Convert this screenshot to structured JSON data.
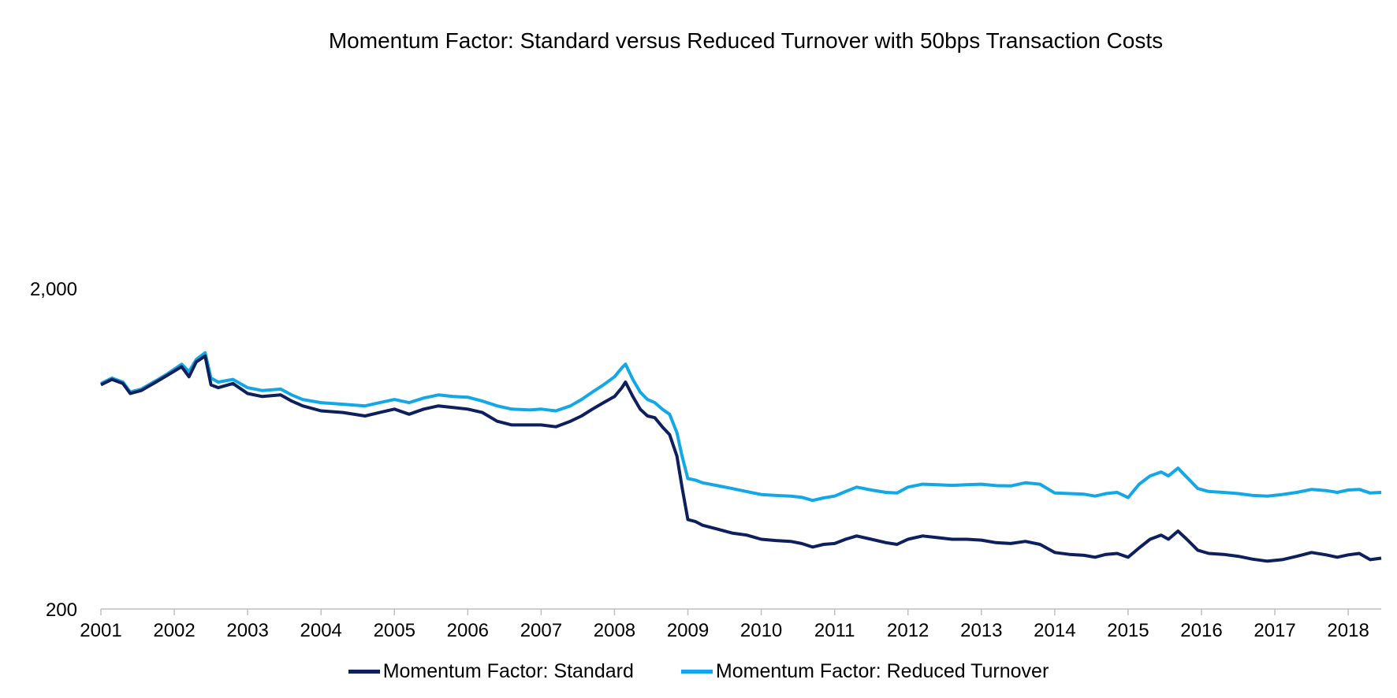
{
  "chart_data": {
    "type": "line",
    "title": "Momentum Factor: Standard versus Reduced Turnover with 50bps Transaction Costs",
    "xlabel": "",
    "ylabel": "",
    "y_scale": "log",
    "ylim": [
      200,
      2000
    ],
    "y_ticks": [
      {
        "value": 200,
        "label": "200"
      },
      {
        "value": 2000,
        "label": "2,000"
      }
    ],
    "xlim": [
      2001.0,
      2018.45
    ],
    "x_ticks": [
      {
        "value": 2001,
        "label": "2001"
      },
      {
        "value": 2002,
        "label": "2002"
      },
      {
        "value": 2003,
        "label": "2003"
      },
      {
        "value": 2004,
        "label": "2004"
      },
      {
        "value": 2005,
        "label": "2005"
      },
      {
        "value": 2006,
        "label": "2006"
      },
      {
        "value": 2007,
        "label": "2007"
      },
      {
        "value": 2008,
        "label": "2008"
      },
      {
        "value": 2009,
        "label": "2009"
      },
      {
        "value": 2010,
        "label": "2010"
      },
      {
        "value": 2011,
        "label": "2011"
      },
      {
        "value": 2012,
        "label": "2012"
      },
      {
        "value": 2013,
        "label": "2013"
      },
      {
        "value": 2014,
        "label": "2014"
      },
      {
        "value": 2015,
        "label": "2015"
      },
      {
        "value": 2016,
        "label": "2016"
      },
      {
        "value": 2017,
        "label": "2017"
      },
      {
        "value": 2018,
        "label": "2018"
      }
    ],
    "grid": false,
    "legend_position": "bottom",
    "series": [
      {
        "name": "Momentum Factor: Standard",
        "color": "#0d1f5c",
        "points": [
          [
            2001.0,
            1000
          ],
          [
            2001.15,
            1040
          ],
          [
            2001.3,
            1010
          ],
          [
            2001.4,
            940
          ],
          [
            2001.55,
            960
          ],
          [
            2001.75,
            1020
          ],
          [
            2001.9,
            1070
          ],
          [
            2002.1,
            1140
          ],
          [
            2002.2,
            1060
          ],
          [
            2002.3,
            1180
          ],
          [
            2002.42,
            1230
          ],
          [
            2002.5,
            1000
          ],
          [
            2002.6,
            980
          ],
          [
            2002.8,
            1010
          ],
          [
            2003.0,
            940
          ],
          [
            2003.2,
            920
          ],
          [
            2003.45,
            930
          ],
          [
            2003.6,
            890
          ],
          [
            2003.75,
            860
          ],
          [
            2004.0,
            830
          ],
          [
            2004.3,
            820
          ],
          [
            2004.6,
            800
          ],
          [
            2004.8,
            820
          ],
          [
            2005.0,
            840
          ],
          [
            2005.2,
            810
          ],
          [
            2005.4,
            840
          ],
          [
            2005.6,
            860
          ],
          [
            2005.8,
            850
          ],
          [
            2006.0,
            840
          ],
          [
            2006.2,
            820
          ],
          [
            2006.4,
            770
          ],
          [
            2006.6,
            750
          ],
          [
            2006.85,
            750
          ],
          [
            2007.0,
            750
          ],
          [
            2007.2,
            740
          ],
          [
            2007.4,
            770
          ],
          [
            2007.55,
            800
          ],
          [
            2007.7,
            840
          ],
          [
            2007.85,
            880
          ],
          [
            2008.0,
            920
          ],
          [
            2008.1,
            980
          ],
          [
            2008.15,
            1020
          ],
          [
            2008.25,
            920
          ],
          [
            2008.35,
            840
          ],
          [
            2008.45,
            800
          ],
          [
            2008.55,
            790
          ],
          [
            2008.65,
            740
          ],
          [
            2008.75,
            700
          ],
          [
            2008.85,
            600
          ],
          [
            2008.92,
            480
          ],
          [
            2009.0,
            380
          ],
          [
            2009.1,
            375
          ],
          [
            2009.2,
            365
          ],
          [
            2009.4,
            355
          ],
          [
            2009.6,
            345
          ],
          [
            2009.8,
            340
          ],
          [
            2010.0,
            330
          ],
          [
            2010.2,
            327
          ],
          [
            2010.4,
            325
          ],
          [
            2010.55,
            320
          ],
          [
            2010.7,
            312
          ],
          [
            2010.85,
            318
          ],
          [
            2011.0,
            320
          ],
          [
            2011.15,
            330
          ],
          [
            2011.3,
            338
          ],
          [
            2011.5,
            330
          ],
          [
            2011.7,
            322
          ],
          [
            2011.85,
            318
          ],
          [
            2012.0,
            330
          ],
          [
            2012.2,
            338
          ],
          [
            2012.4,
            334
          ],
          [
            2012.6,
            330
          ],
          [
            2012.8,
            330
          ],
          [
            2013.0,
            328
          ],
          [
            2013.2,
            322
          ],
          [
            2013.4,
            320
          ],
          [
            2013.6,
            325
          ],
          [
            2013.8,
            318
          ],
          [
            2014.0,
            300
          ],
          [
            2014.2,
            296
          ],
          [
            2014.4,
            294
          ],
          [
            2014.55,
            290
          ],
          [
            2014.7,
            296
          ],
          [
            2014.85,
            298
          ],
          [
            2015.0,
            290
          ],
          [
            2015.15,
            310
          ],
          [
            2015.3,
            330
          ],
          [
            2015.45,
            340
          ],
          [
            2015.55,
            330
          ],
          [
            2015.68,
            350
          ],
          [
            2015.8,
            330
          ],
          [
            2015.95,
            305
          ],
          [
            2016.1,
            298
          ],
          [
            2016.3,
            296
          ],
          [
            2016.5,
            292
          ],
          [
            2016.7,
            286
          ],
          [
            2016.9,
            282
          ],
          [
            2017.1,
            285
          ],
          [
            2017.3,
            292
          ],
          [
            2017.5,
            300
          ],
          [
            2017.7,
            295
          ],
          [
            2017.85,
            290
          ],
          [
            2018.0,
            295
          ],
          [
            2018.15,
            298
          ],
          [
            2018.3,
            285
          ],
          [
            2018.45,
            288
          ]
        ]
      },
      {
        "name": "Momentum Factor: Reduced Turnover",
        "color": "#12a8e8",
        "points": [
          [
            2001.0,
            1010
          ],
          [
            2001.15,
            1050
          ],
          [
            2001.3,
            1020
          ],
          [
            2001.4,
            950
          ],
          [
            2001.55,
            970
          ],
          [
            2001.75,
            1030
          ],
          [
            2001.9,
            1080
          ],
          [
            2002.1,
            1160
          ],
          [
            2002.2,
            1100
          ],
          [
            2002.3,
            1200
          ],
          [
            2002.42,
            1260
          ],
          [
            2002.5,
            1050
          ],
          [
            2002.6,
            1020
          ],
          [
            2002.8,
            1040
          ],
          [
            2003.0,
            980
          ],
          [
            2003.2,
            960
          ],
          [
            2003.45,
            970
          ],
          [
            2003.6,
            930
          ],
          [
            2003.75,
            900
          ],
          [
            2004.0,
            880
          ],
          [
            2004.3,
            870
          ],
          [
            2004.6,
            860
          ],
          [
            2004.8,
            880
          ],
          [
            2005.0,
            900
          ],
          [
            2005.2,
            880
          ],
          [
            2005.4,
            910
          ],
          [
            2005.6,
            930
          ],
          [
            2005.8,
            920
          ],
          [
            2006.0,
            915
          ],
          [
            2006.2,
            890
          ],
          [
            2006.4,
            860
          ],
          [
            2006.6,
            840
          ],
          [
            2006.85,
            835
          ],
          [
            2007.0,
            840
          ],
          [
            2007.2,
            830
          ],
          [
            2007.4,
            860
          ],
          [
            2007.55,
            900
          ],
          [
            2007.7,
            950
          ],
          [
            2007.85,
            1000
          ],
          [
            2008.0,
            1060
          ],
          [
            2008.1,
            1130
          ],
          [
            2008.15,
            1160
          ],
          [
            2008.25,
            1040
          ],
          [
            2008.35,
            950
          ],
          [
            2008.45,
            900
          ],
          [
            2008.55,
            880
          ],
          [
            2008.65,
            840
          ],
          [
            2008.75,
            810
          ],
          [
            2008.85,
            710
          ],
          [
            2008.92,
            600
          ],
          [
            2009.0,
            510
          ],
          [
            2009.1,
            505
          ],
          [
            2009.2,
            495
          ],
          [
            2009.4,
            485
          ],
          [
            2009.6,
            475
          ],
          [
            2009.8,
            465
          ],
          [
            2010.0,
            455
          ],
          [
            2010.2,
            452
          ],
          [
            2010.4,
            450
          ],
          [
            2010.55,
            446
          ],
          [
            2010.7,
            436
          ],
          [
            2010.85,
            444
          ],
          [
            2011.0,
            450
          ],
          [
            2011.15,
            465
          ],
          [
            2011.3,
            480
          ],
          [
            2011.5,
            470
          ],
          [
            2011.7,
            462
          ],
          [
            2011.85,
            460
          ],
          [
            2012.0,
            480
          ],
          [
            2012.2,
            490
          ],
          [
            2012.4,
            488
          ],
          [
            2012.6,
            486
          ],
          [
            2012.8,
            488
          ],
          [
            2013.0,
            490
          ],
          [
            2013.2,
            485
          ],
          [
            2013.4,
            484
          ],
          [
            2013.6,
            495
          ],
          [
            2013.8,
            490
          ],
          [
            2014.0,
            460
          ],
          [
            2014.2,
            458
          ],
          [
            2014.4,
            456
          ],
          [
            2014.55,
            450
          ],
          [
            2014.7,
            458
          ],
          [
            2014.85,
            462
          ],
          [
            2015.0,
            445
          ],
          [
            2015.15,
            490
          ],
          [
            2015.3,
            520
          ],
          [
            2015.45,
            535
          ],
          [
            2015.55,
            520
          ],
          [
            2015.68,
            550
          ],
          [
            2015.8,
            515
          ],
          [
            2015.95,
            475
          ],
          [
            2016.1,
            465
          ],
          [
            2016.3,
            462
          ],
          [
            2016.5,
            458
          ],
          [
            2016.7,
            452
          ],
          [
            2016.9,
            450
          ],
          [
            2017.1,
            455
          ],
          [
            2017.3,
            462
          ],
          [
            2017.5,
            472
          ],
          [
            2017.7,
            468
          ],
          [
            2017.85,
            462
          ],
          [
            2018.0,
            470
          ],
          [
            2018.15,
            472
          ],
          [
            2018.3,
            460
          ],
          [
            2018.45,
            462
          ]
        ]
      }
    ]
  }
}
